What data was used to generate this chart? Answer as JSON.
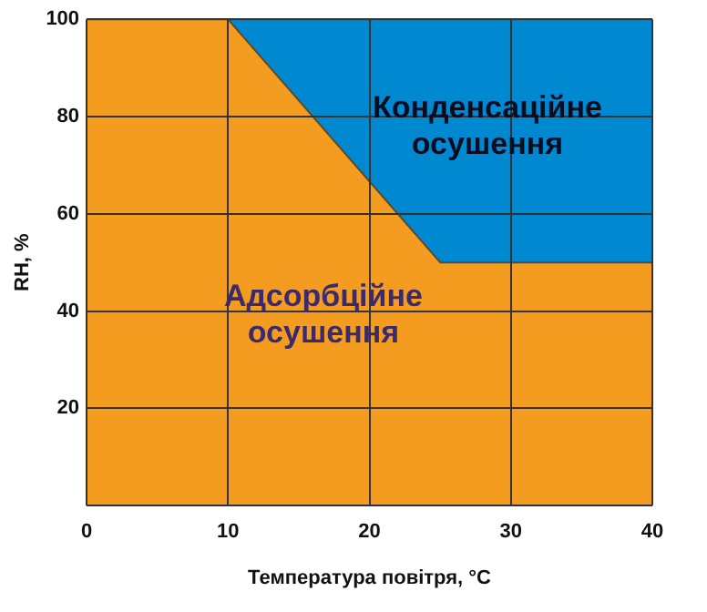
{
  "chart_data": {
    "type": "area",
    "stacked": true,
    "xlabel": "Температура повітря, °C",
    "ylabel": "RH, %",
    "x": [
      0,
      10,
      25,
      40
    ],
    "series": [
      {
        "name": "Адсорбційне осушення",
        "color": "#f39c1f",
        "values": [
          100,
          100,
          50,
          50
        ]
      },
      {
        "name": "Конденсаційне осушення",
        "color": "#0088d0",
        "values": [
          0,
          0,
          50,
          50
        ]
      }
    ],
    "xlim": [
      0,
      40
    ],
    "xticks": [
      0,
      10,
      20,
      30,
      40
    ],
    "ylim": [
      0,
      100
    ],
    "yticks": [
      {
        "value": 0,
        "label": null
      },
      20,
      40,
      60,
      80,
      100
    ],
    "grid": true,
    "legend": false
  }
}
